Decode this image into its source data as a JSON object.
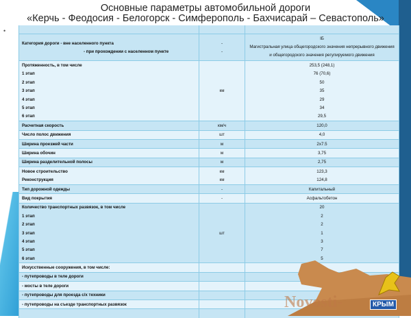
{
  "title": {
    "line1": "Основные параметры автомобильной дороги",
    "line2": "«Керчь - Феодосия - Белогорск - Симферополь - Бахчисарай – Севастополь»"
  },
  "bullet": "•",
  "category": {
    "label1": "Категория дороги - вне населенного пункта",
    "label2": "- при прохождении с населенном пункте",
    "unit1": "-",
    "unit2": "-",
    "value1": "IБ",
    "value2": "Магистральная улица общегородского значения непрерывного движения и общегородского значения регулируемого движения"
  },
  "length": {
    "label": "Протяженность, в том числе",
    "unit": "км",
    "value": "253,5 (248,1)",
    "stages": [
      {
        "label": "1 этап",
        "value": "76 (70,6)"
      },
      {
        "label": "2 этап",
        "value": "50"
      },
      {
        "label": "3 этап",
        "value": "35"
      },
      {
        "label": "4 этап",
        "value": "29"
      },
      {
        "label": "5 этап",
        "value": "34"
      },
      {
        "label": "6 этап",
        "value": "29,5"
      }
    ]
  },
  "rows": [
    {
      "label": "Расчетная скорость",
      "unit": "км/ч",
      "value": "120,0"
    },
    {
      "label": "Число полос движения",
      "unit": "шт",
      "value": "4,0"
    },
    {
      "label": "Ширина проезжей части",
      "unit": "м",
      "value": "2х7.5"
    },
    {
      "label": "Ширина обочин",
      "unit": "м",
      "value": "3,75"
    },
    {
      "label": "Ширина разделительной полосы",
      "unit": "м",
      "value": "2,75"
    },
    {
      "label": "Новое строительство",
      "unit": "км",
      "value": "123,3"
    },
    {
      "label": "Реконструкция",
      "unit": "км",
      "value": "124,8"
    },
    {
      "label": "Тип дорожной одежды",
      "unit": "-",
      "value": "Капитальный"
    },
    {
      "label": "Вид покрытия",
      "unit": "-",
      "value": "Асфальтобетон"
    }
  ],
  "interchanges": {
    "label": "Количество транспортных развязок, в том числе",
    "unit": "шт",
    "value": "20",
    "stages": [
      {
        "label": "1 этап",
        "value": "2"
      },
      {
        "label": "2 этап",
        "value": "2"
      },
      {
        "label": "3 этап",
        "value": "1"
      },
      {
        "label": "4 этап",
        "value": "3"
      },
      {
        "label": "5 этап",
        "value": "7"
      },
      {
        "label": "6 этап",
        "value": "5"
      }
    ]
  },
  "structures": {
    "label": "Искусственные сооружения, в том числе:",
    "items": [
      "- путепроводы в теле дороги",
      "- мосты в теле дороги",
      "- путепроводы для проезда с/х техники",
      "- путепроводы на съезде транспортных развязок"
    ]
  },
  "watermark": "Novosti-Krym",
  "logo": "КРЫМ"
}
